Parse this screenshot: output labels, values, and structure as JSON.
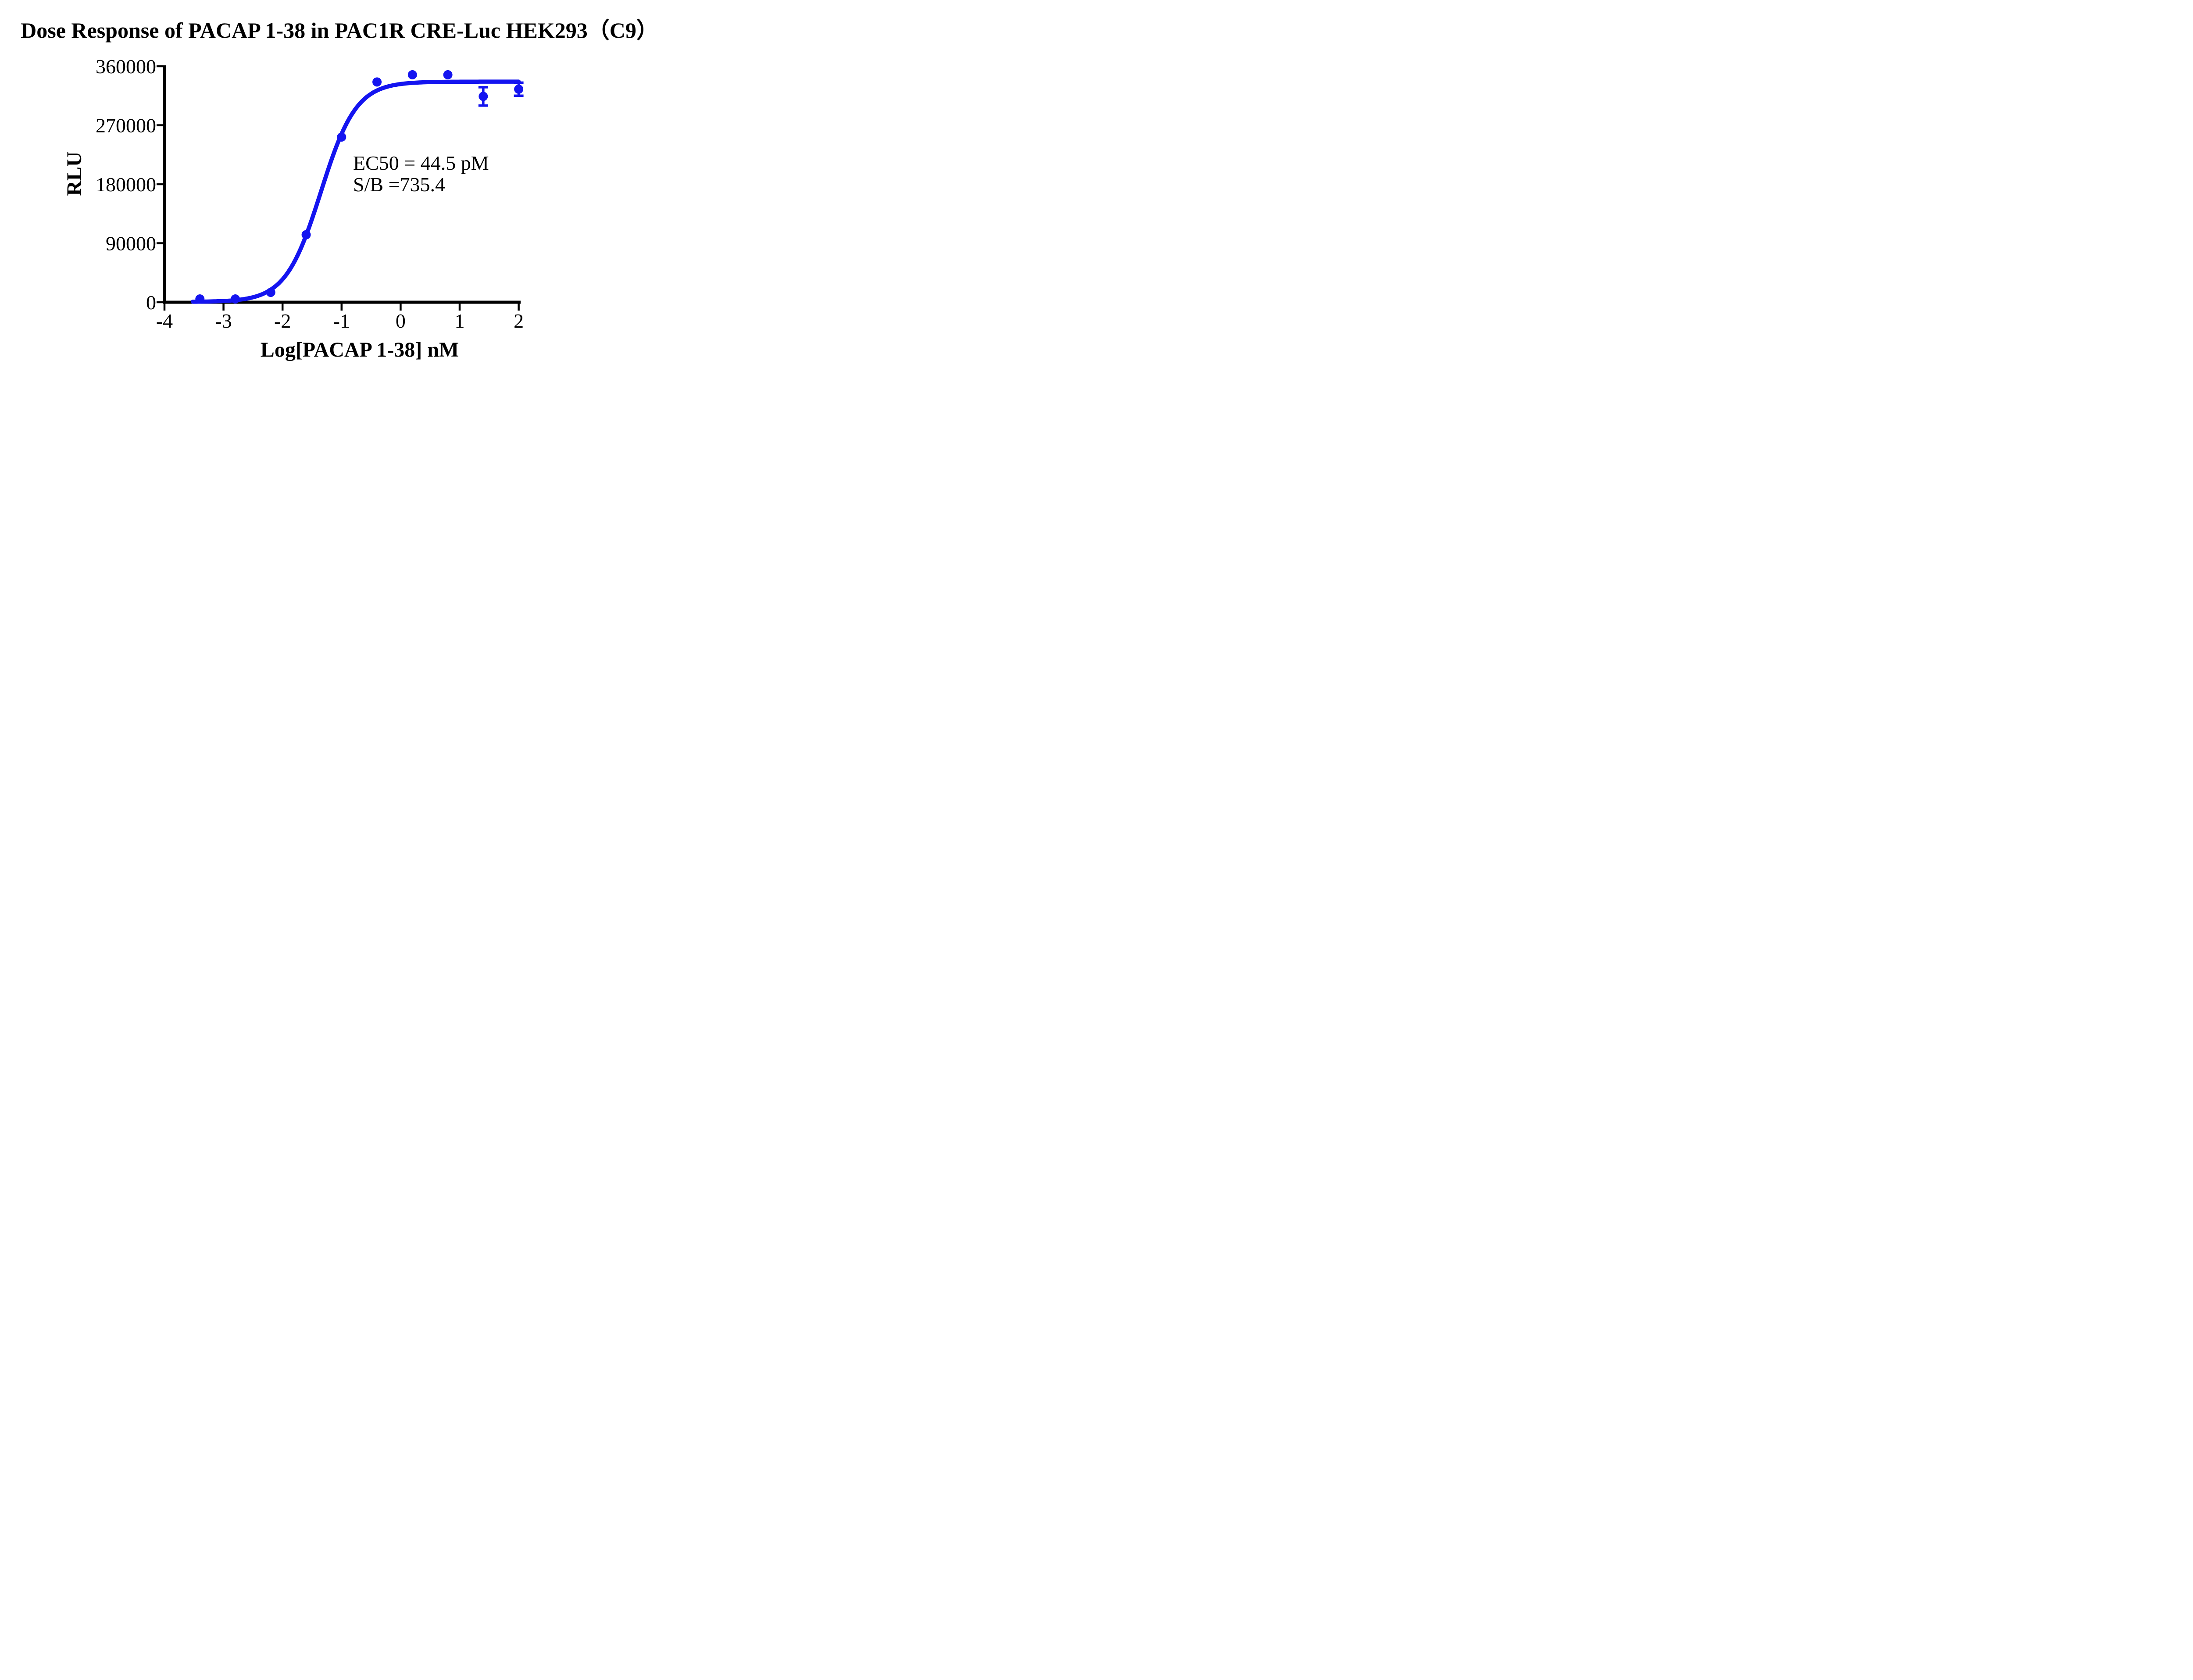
{
  "title": "Dose Response of PACAP 1-38 in PAC1R CRE-Luc HEK293（C9）",
  "annotation": {
    "line1": "EC50 = 44.5 pM",
    "line2": "S/B =735.4"
  },
  "colors": {
    "series": "#1414F0",
    "axis": "#000000",
    "background": "#FFFFFF",
    "text": "#000000"
  },
  "chart_data": {
    "type": "scatter",
    "title": "Dose Response of PACAP 1-38 in PAC1R CRE-Luc HEK293（C9）",
    "xlabel": "Log[PACAP 1-38] nM",
    "ylabel": "RLU",
    "xlim": [
      -4,
      2.05
    ],
    "ylim": [
      0,
      360000
    ],
    "xticks": [
      "-4",
      "-3",
      "-2",
      "-1",
      "0",
      "1",
      "2"
    ],
    "xtick_values": [
      -4,
      -3,
      -2,
      -1,
      0,
      1,
      2
    ],
    "yticks": [
      "0",
      "90000",
      "180000",
      "270000",
      "360000"
    ],
    "ytick_values": [
      0,
      90000,
      180000,
      270000,
      360000
    ],
    "grid": false,
    "legend": "none",
    "series": [
      {
        "name": "PACAP 1-38",
        "marker": "circle",
        "x": [
          -3.4,
          -2.8,
          -2.2,
          -1.6,
          -1.0,
          -0.4,
          0.2,
          0.8,
          1.4,
          2.0
        ],
        "y": [
          5000,
          5000,
          15000,
          103000,
          252000,
          336000,
          347000,
          347000,
          314000,
          325000
        ],
        "yerr": [
          0,
          0,
          0,
          0,
          0,
          0,
          0,
          0,
          14000,
          10000
        ]
      }
    ],
    "fit_curve": {
      "model": "4PL sigmoidal dose-response",
      "bottom": 500,
      "top": 336500,
      "log_ec50": -1.35,
      "hill_slope": 1.45,
      "x_start": -3.52,
      "x_end": 2.02
    },
    "annotations": [
      "EC50 = 44.5 pM",
      "S/B =735.4"
    ]
  }
}
